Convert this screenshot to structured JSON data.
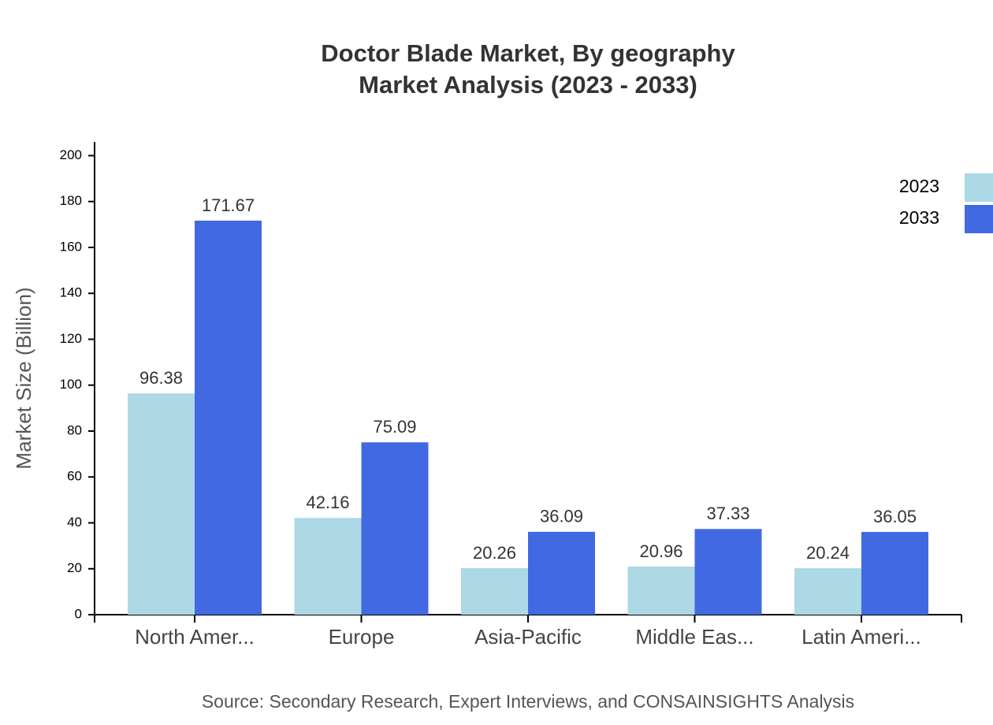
{
  "chart_data": {
    "type": "bar",
    "title": "Doctor Blade Market, By geography",
    "subtitle": "Market Analysis (2023 - 2033)",
    "y_label": "Market Size (Billion)",
    "source": "Source: Secondary Research, Expert Interviews, and CONSAINSIGHTS Analysis",
    "categories": [
      "North Amer...",
      "Europe",
      "Asia-Pacific",
      "Middle Eas...",
      "Latin Ameri..."
    ],
    "series": [
      {
        "name": "2023",
        "color": "#add8e6",
        "values": [
          96.38,
          42.16,
          20.26,
          20.96,
          20.24
        ]
      },
      {
        "name": "2033",
        "color": "#4169e1",
        "values": [
          171.67,
          75.09,
          36.09,
          37.33,
          36.05
        ]
      }
    ],
    "ylim": [
      0,
      206
    ],
    "yticks": [
      0,
      20,
      40,
      60,
      80,
      100,
      120,
      140,
      160,
      180,
      200
    ]
  }
}
